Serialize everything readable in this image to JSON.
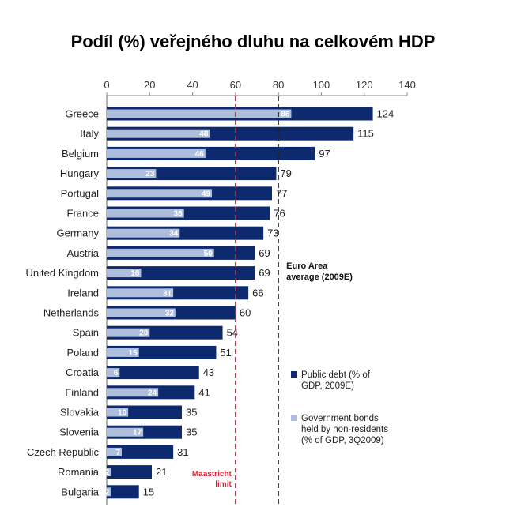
{
  "chart_data": {
    "type": "bar",
    "orientation": "horizontal",
    "title": "Podíl (%) veřejného dluhu na celkovém HDP",
    "xlim": [
      0,
      140
    ],
    "xticks": [
      "0",
      "20",
      "40",
      "60",
      "80",
      "100",
      "120",
      "140"
    ],
    "xtick_values": [
      0,
      20,
      40,
      60,
      80,
      100,
      120,
      140
    ],
    "categories": [
      "Greece",
      "Italy",
      "Belgium",
      "Hungary",
      "Portugal",
      "France",
      "Germany",
      "Austria",
      "United Kingdom",
      "Ireland",
      "Netherlands",
      "Spain",
      "Poland",
      "Croatia",
      "Finland",
      "Slovakia",
      "Slovenia",
      "Czech Republic",
      "Romania",
      "Bulgaria"
    ],
    "series": [
      {
        "name": "Public debt (% of GDP, 2009E)",
        "legend_lines": [
          "Public debt (% of",
          "GDP, 2009E)"
        ],
        "color": "#0d2a6e",
        "values": [
          124,
          115,
          97,
          79,
          77,
          76,
          73,
          69,
          69,
          66,
          60,
          54,
          51,
          43,
          41,
          35,
          35,
          31,
          21,
          15
        ]
      },
      {
        "name": "Government bonds held by non-residents (% of GDP, 3Q2009)",
        "legend_lines": [
          "Government bonds",
          "held by non-residents",
          "(% of GDP, 3Q2009)"
        ],
        "color": "#aebedd",
        "values": [
          86,
          48,
          46,
          23,
          49,
          36,
          34,
          50,
          16,
          31,
          32,
          20,
          15,
          6,
          24,
          10,
          17,
          7,
          2,
          2
        ]
      }
    ],
    "reference_lines": [
      {
        "name": "Maastricht limit",
        "value": 60,
        "color": "#d0273a",
        "label_lines": [
          "Maastricht",
          "limit"
        ]
      },
      {
        "name": "Euro Area average (2009E)",
        "value": 80,
        "color": "#222222",
        "label_lines": [
          "Euro Area",
          "average (2009E)"
        ]
      }
    ],
    "legend_position": "right"
  }
}
